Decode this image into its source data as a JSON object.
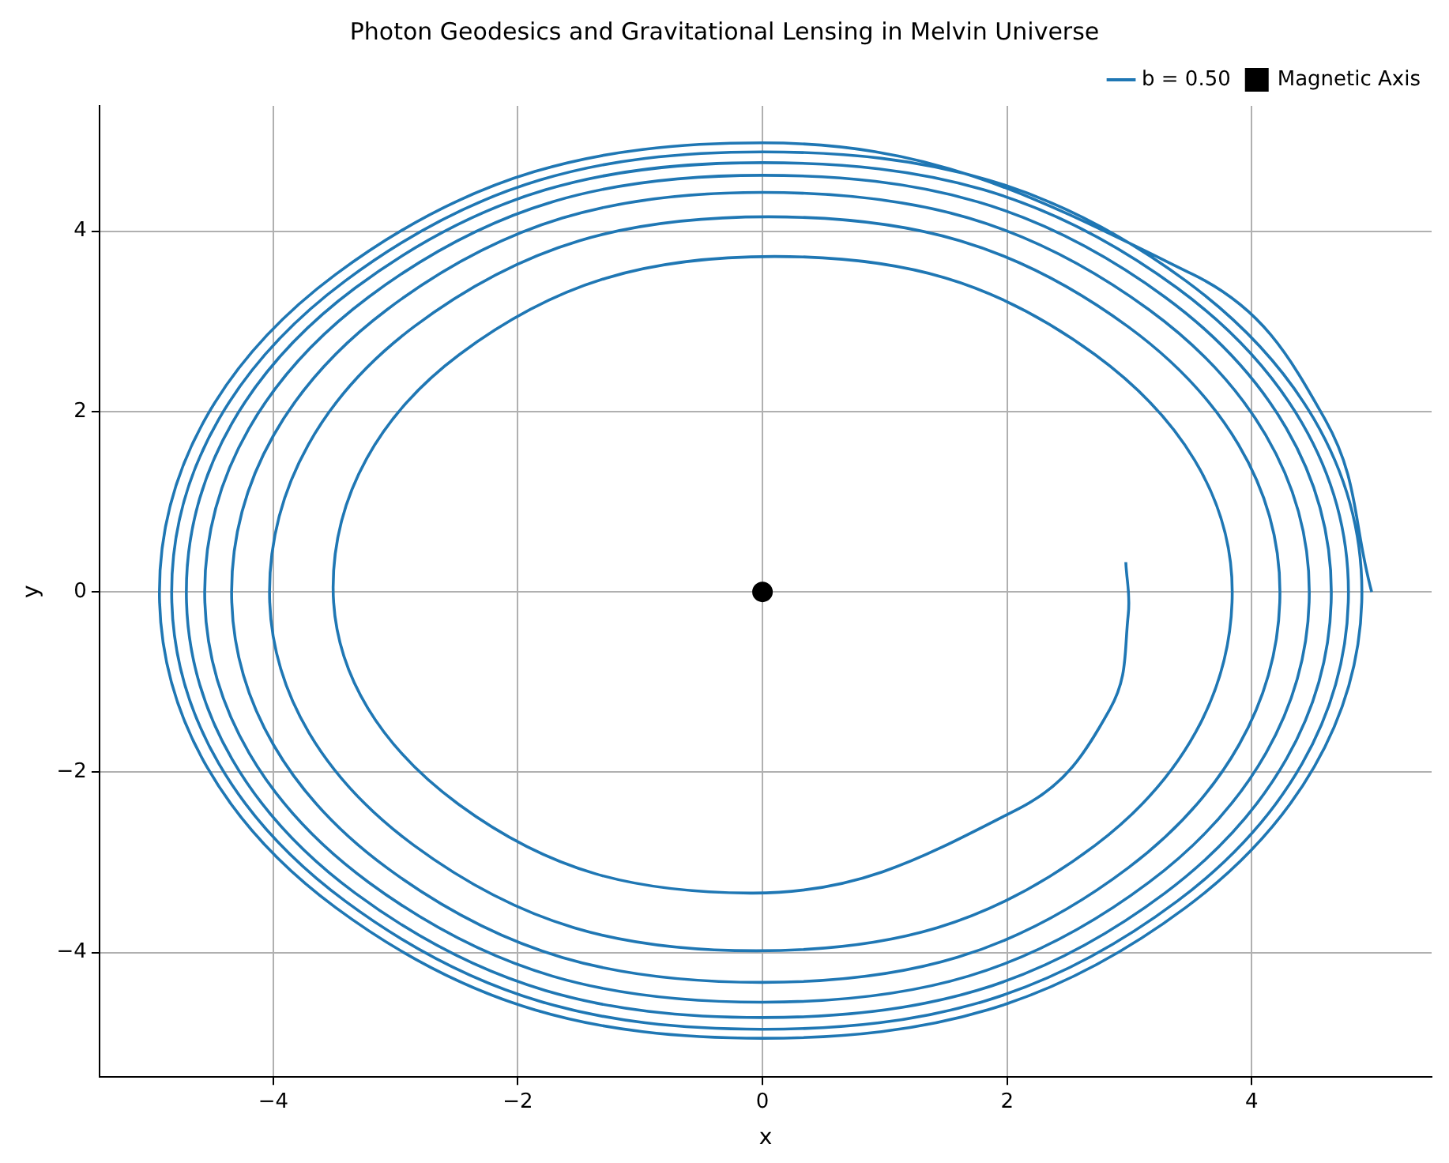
{
  "chart_data": {
    "type": "line",
    "title": "Photon Geodesics and Gravitational Lensing in Melvin Universe",
    "xlabel": "x",
    "ylabel": "y",
    "series": [
      {
        "name": "b = 0.50",
        "color": "#1f77b4",
        "marker": "none",
        "x": [
          4.98,
          4.6,
          3.52,
          0,
          -3.49,
          -4.93,
          -3.49,
          0,
          3.46,
          4.9,
          3.46,
          0,
          -3.41,
          -4.83,
          -3.41,
          0,
          3.39,
          4.79,
          3.39,
          0,
          -3.33,
          -4.71,
          -3.33,
          0,
          3.29,
          4.65,
          3.29,
          0,
          -3.22,
          -4.56,
          -3.22,
          0,
          3.16,
          4.47,
          3.16,
          0,
          -3.07,
          -4.34,
          -3.07,
          0,
          2.99,
          4.23,
          2.99,
          0.05,
          -2.85,
          -4.03,
          -2.85,
          -0.05,
          2.72,
          3.84,
          2.72,
          0.1,
          -2.48,
          -3.51,
          -2.48,
          -0.1,
          2.1,
          2.84,
          2.99,
          2.97
        ],
        "values": [
          0,
          1.91,
          3.52,
          4.98,
          3.52,
          0,
          -3.5,
          -4.95,
          -3.5,
          0,
          3.45,
          4.88,
          3.45,
          0,
          -3.43,
          -4.85,
          -3.43,
          0,
          3.37,
          4.76,
          3.37,
          0,
          -3.34,
          -4.72,
          -3.34,
          0,
          3.27,
          4.62,
          3.27,
          0,
          -3.22,
          -4.55,
          -3.22,
          0,
          3.13,
          4.43,
          3.13,
          0,
          -3.06,
          -4.33,
          -3.06,
          0,
          2.94,
          4.16,
          2.94,
          0,
          -2.81,
          -3.98,
          -2.81,
          0,
          2.63,
          3.72,
          2.63,
          0.05,
          -2.36,
          -3.34,
          -2.4,
          -1.3,
          -0.25,
          0.33
        ]
      },
      {
        "name": "Magnetic Axis",
        "type": "scatter",
        "color": "#000000",
        "marker": "circle",
        "x": [
          0
        ],
        "values": [
          0
        ]
      }
    ],
    "xlim": [
      -5.42,
      5.47
    ],
    "ylim": [
      -5.38,
      5.39
    ],
    "xticks": [
      {
        "value": -4,
        "label": "−4"
      },
      {
        "value": -2,
        "label": "−2"
      },
      0,
      2,
      4
    ],
    "yticks": [
      {
        "value": -4,
        "label": "−4"
      },
      {
        "value": -2,
        "label": "−2"
      },
      0,
      2,
      4
    ],
    "grid": true,
    "legend": "top right"
  }
}
